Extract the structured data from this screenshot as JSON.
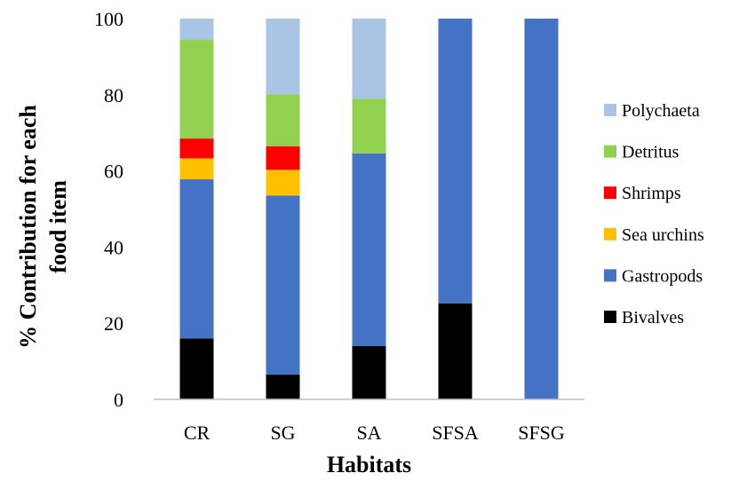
{
  "chart_data": {
    "type": "bar",
    "stacked": true,
    "xlabel": "Habitats",
    "ylabel": "% Contribution for each food item",
    "ylim": [
      0,
      100
    ],
    "yticks": [
      0,
      20,
      40,
      60,
      80,
      100
    ],
    "grid": false,
    "legend_position": "right",
    "categories": [
      "CR",
      "SG",
      "SA",
      "SFSA",
      "SFSG"
    ],
    "series": [
      {
        "name": "Bivalves",
        "color": "#000000",
        "values": [
          16,
          6.5,
          14,
          25.2,
          0
        ]
      },
      {
        "name": "Gastropods",
        "color": "#4472C4",
        "values": [
          41.8,
          47,
          50.6,
          74.8,
          100
        ]
      },
      {
        "name": "Sea urchins",
        "color": "#FFC000",
        "values": [
          5.5,
          6.8,
          0,
          0,
          0
        ]
      },
      {
        "name": "Shrimps",
        "color": "#FF0000",
        "values": [
          5.2,
          6.2,
          0,
          0,
          0
        ]
      },
      {
        "name": "Detritus",
        "color": "#92D050",
        "values": [
          26,
          13.6,
          14.4,
          0,
          0
        ]
      },
      {
        "name": "Polychaeta",
        "color": "#A9C4E5",
        "values": [
          5.5,
          19.9,
          21,
          0,
          0
        ]
      }
    ],
    "legend_order": [
      "Polychaeta",
      "Detritus",
      "Shrimps",
      "Sea urchins",
      "Gastropods",
      "Bivalves"
    ]
  }
}
